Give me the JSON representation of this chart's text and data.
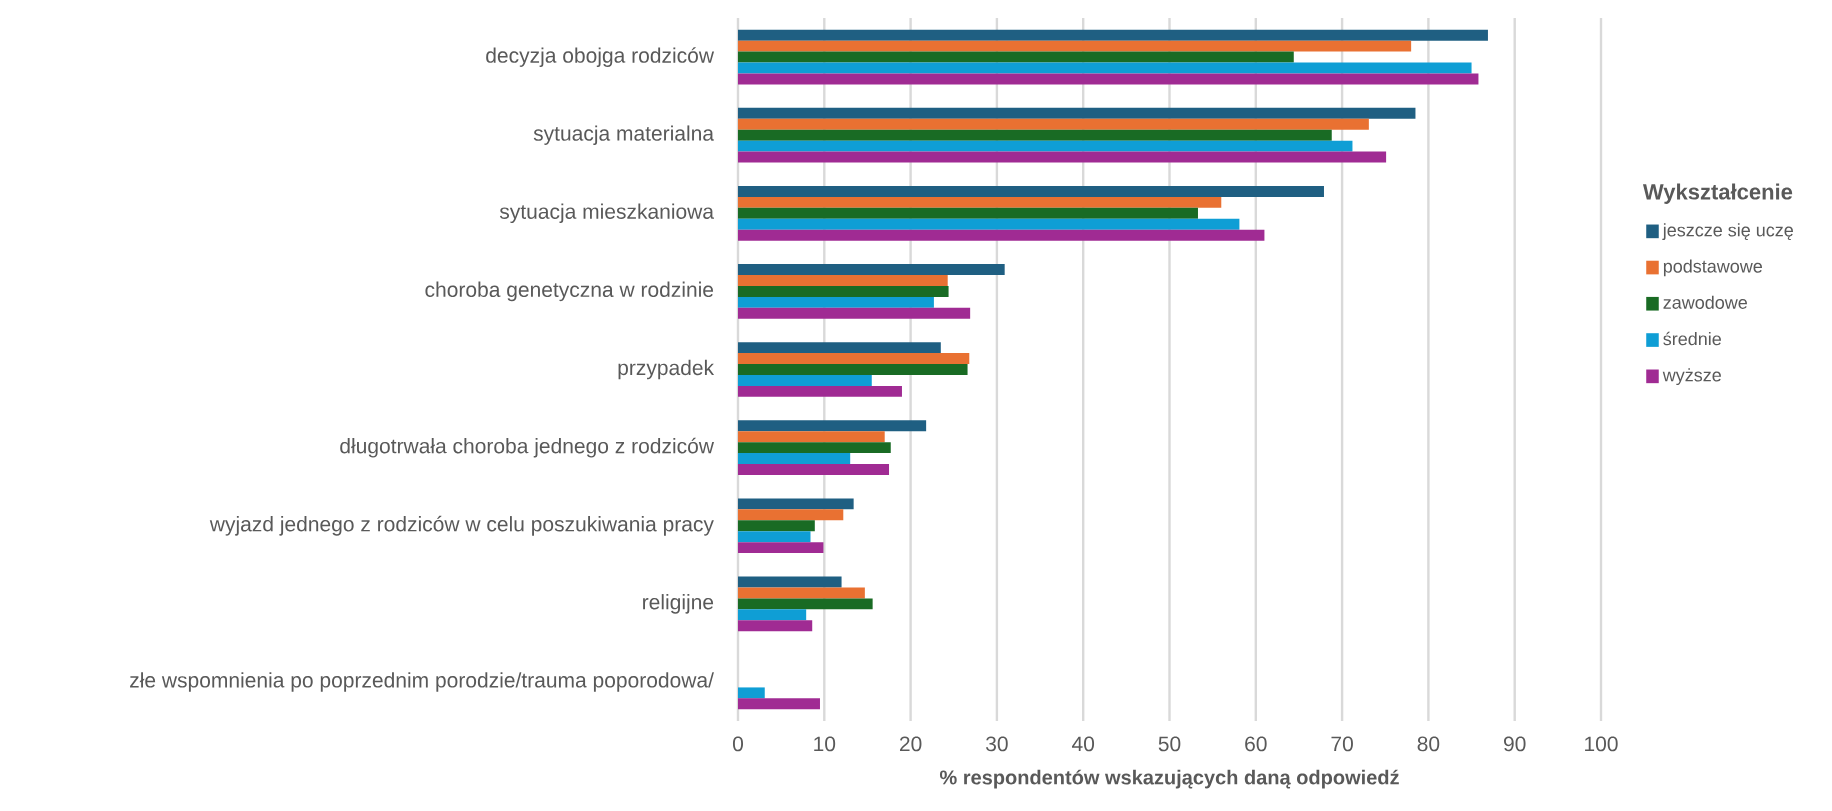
{
  "chart_data": {
    "type": "bar",
    "orientation": "horizontal",
    "categories": [
      "decyzja obojga rodziców",
      "sytuacja materialna",
      "sytuacja mieszkaniowa",
      "choroba genetyczna w rodzinie",
      "przypadek",
      "długotrwała choroba jednego z rodziców",
      "wyjazd jednego z rodziców w celu poszukiwania pracy",
      "religijne",
      "złe wspomnienia po poprzednim porodzie/trauma poporodowa/"
    ],
    "xlabel": "% respondentów wskazujących daną odpowiedź",
    "legend_title": "Wykształcenie",
    "series": [
      {
        "name": "jeszcze się uczę",
        "color": "#1f5f82",
        "values": [
          86.9,
          78.5,
          67.9,
          30.9,
          23.5,
          21.8,
          13.4,
          12.0,
          null
        ]
      },
      {
        "name": "podstawowe",
        "color": "#e97132",
        "values": [
          78.0,
          73.1,
          56.0,
          24.3,
          26.8,
          17.0,
          12.2,
          14.7,
          null
        ]
      },
      {
        "name": "zawodowe",
        "color": "#196b24",
        "values": [
          64.4,
          68.8,
          53.3,
          24.4,
          26.6,
          17.7,
          8.9,
          15.6,
          null
        ]
      },
      {
        "name": "średnie",
        "color": "#0f9ed5",
        "values": [
          85.0,
          71.2,
          58.1,
          22.7,
          15.5,
          13.0,
          8.4,
          7.9,
          3.1
        ]
      },
      {
        "name": "wyższe",
        "color": "#a02b93",
        "values": [
          85.8,
          75.1,
          61.0,
          26.9,
          19.0,
          17.5,
          9.9,
          8.6,
          9.5
        ]
      }
    ],
    "xlim": [
      0,
      100
    ],
    "xticks": [
      0,
      10,
      20,
      30,
      40,
      50,
      60,
      70,
      80,
      90,
      100
    ],
    "grid": "x",
    "legend": "right"
  }
}
